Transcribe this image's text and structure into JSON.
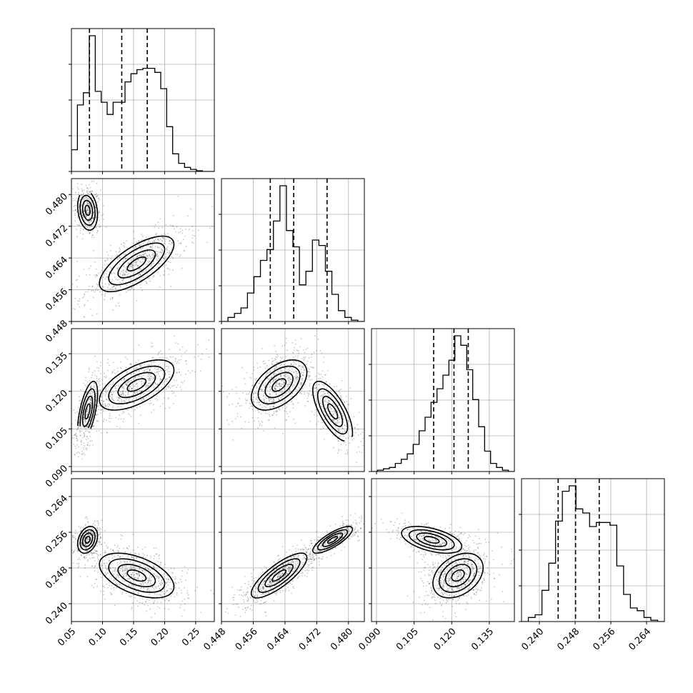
{
  "chart_data": {
    "type": "corner",
    "grid": true,
    "parameters": [
      {
        "range": [
          0.05,
          0.28
        ],
        "ticks": [
          "0.05",
          "0.10",
          "0.15",
          "0.20",
          "0.25"
        ],
        "tick_values": [
          0.05,
          0.1,
          0.15,
          0.2,
          0.25
        ],
        "quantiles": [
          0.079,
          0.131,
          0.172
        ],
        "histogram": [
          0.16,
          0.49,
          0.58,
          1.0,
          0.59,
          0.51,
          0.42,
          0.51,
          0.51,
          0.66,
          0.72,
          0.75,
          0.76,
          0.76,
          0.73,
          0.61,
          0.33,
          0.13,
          0.06,
          0.03,
          0.015,
          0.005,
          0.0,
          0.0
        ],
        "modes": [
          {
            "mean": 0.076,
            "sd": 0.008,
            "weight": 0.35
          },
          {
            "mean": 0.155,
            "sd": 0.03,
            "weight": 0.65
          }
        ]
      },
      {
        "range": [
          0.448,
          0.484
        ],
        "ticks": [
          "0.448",
          "0.456",
          "0.464",
          "0.472",
          "0.480"
        ],
        "tick_values": [
          0.448,
          0.456,
          0.464,
          0.472,
          0.48
        ],
        "quantiles": [
          0.4603,
          0.4662,
          0.4746
        ],
        "histogram": [
          0.0,
          0.03,
          0.06,
          0.1,
          0.21,
          0.33,
          0.45,
          0.53,
          0.74,
          1.0,
          0.67,
          0.55,
          0.27,
          0.37,
          0.6,
          0.56,
          0.37,
          0.2,
          0.08,
          0.03,
          0.01,
          0.0
        ],
        "modes": [
          {
            "mean": 0.476,
            "sd": 0.0025,
            "weight": 0.35
          },
          {
            "mean": 0.4625,
            "sd": 0.0035,
            "weight": 0.65
          }
        ]
      },
      {
        "range": [
          0.088,
          0.145
        ],
        "ticks": [
          "0.090",
          "0.105",
          "0.120",
          "0.135"
        ],
        "tick_values": [
          0.09,
          0.105,
          0.12,
          0.135
        ],
        "quantiles": [
          0.1128,
          0.1209,
          0.1266
        ],
        "histogram": [
          0.0,
          0.01,
          0.02,
          0.03,
          0.06,
          0.09,
          0.13,
          0.2,
          0.3,
          0.4,
          0.51,
          0.61,
          0.71,
          0.82,
          1.0,
          0.93,
          0.75,
          0.53,
          0.33,
          0.15,
          0.06,
          0.03,
          0.01,
          0.0
        ],
        "modes": [
          {
            "mean": 0.112,
            "sd": 0.006,
            "weight": 0.35
          },
          {
            "mean": 0.1225,
            "sd": 0.005,
            "weight": 0.65
          }
        ]
      },
      {
        "range": [
          0.236,
          0.268
        ],
        "ticks": [
          "0.240",
          "0.248",
          "0.256",
          "0.264"
        ],
        "tick_values": [
          0.24,
          0.248,
          0.256,
          0.264
        ],
        "quantiles": [
          0.2442,
          0.2481,
          0.2534
        ],
        "histogram": [
          0.0,
          0.03,
          0.05,
          0.23,
          0.43,
          0.74,
          0.96,
          1.0,
          0.83,
          0.8,
          0.7,
          0.73,
          0.73,
          0.71,
          0.41,
          0.2,
          0.1,
          0.08,
          0.03,
          0.01,
          0.0
        ],
        "modes": [
          {
            "mean": 0.2543,
            "sd": 0.0015,
            "weight": 0.35
          },
          {
            "mean": 0.2463,
            "sd": 0.0025,
            "weight": 0.65
          }
        ]
      }
    ],
    "correlations": {
      "1_0": [
        -0.2,
        0.7
      ],
      "2_0": [
        0.6,
        0.6
      ],
      "2_1": [
        -0.7,
        0.5
      ],
      "3_0": [
        0.3,
        -0.5
      ],
      "3_1": [
        0.8,
        0.8
      ],
      "3_2": [
        -0.5,
        0.35
      ]
    }
  }
}
